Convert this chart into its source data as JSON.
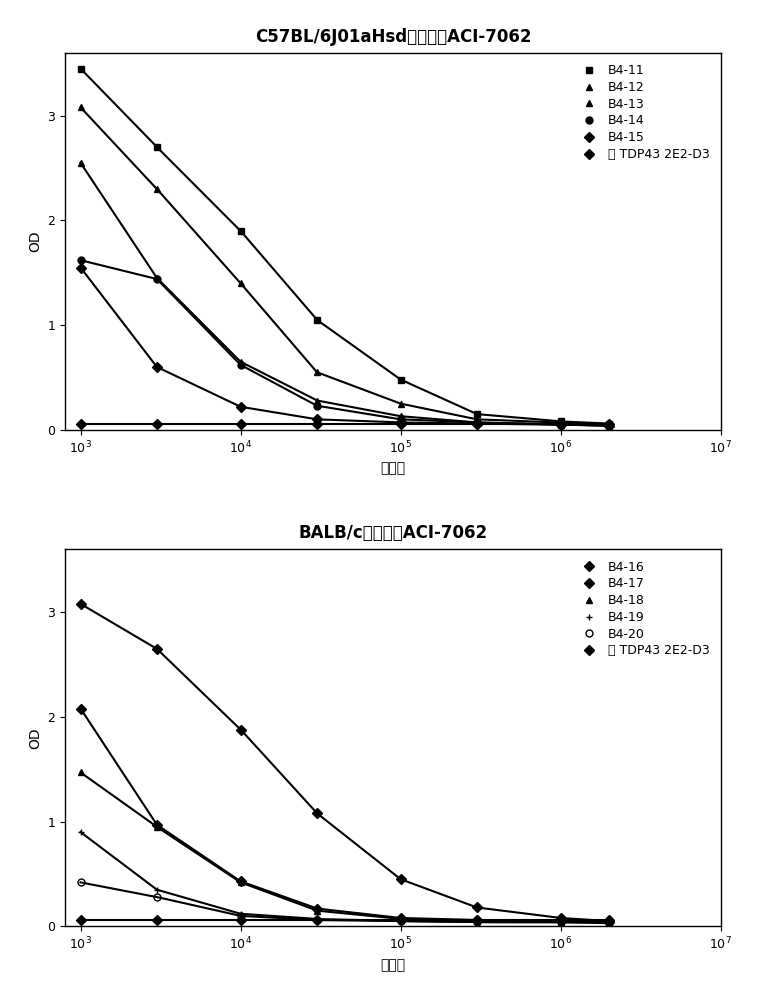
{
  "top_title": "C57BL/6J01aHsd小鼠中的ACI-7062",
  "bottom_title": "BALB/c小鼠中的ACI-7062",
  "xlabel": "稀释度",
  "ylabel": "OD",
  "top": {
    "series": [
      {
        "label": "B4-11",
        "marker": "s",
        "x": [
          1000,
          3000,
          10000,
          30000,
          100000,
          300000,
          1000000,
          2000000
        ],
        "y": [
          3.45,
          2.7,
          1.9,
          1.05,
          0.48,
          0.15,
          0.08,
          0.06
        ]
      },
      {
        "label": "B4-12",
        "marker": "^",
        "x": [
          1000,
          3000,
          10000,
          30000,
          100000,
          300000,
          1000000,
          2000000
        ],
        "y": [
          3.08,
          2.3,
          1.4,
          0.55,
          0.25,
          0.1,
          0.07,
          0.05
        ]
      },
      {
        "label": "B4-13",
        "marker": "^",
        "x": [
          1000,
          3000,
          10000,
          30000,
          100000,
          300000,
          1000000,
          2000000
        ],
        "y": [
          2.55,
          1.45,
          0.65,
          0.28,
          0.13,
          0.07,
          0.05,
          0.04
        ]
      },
      {
        "label": "B4-14",
        "marker": "o",
        "x": [
          1000,
          3000,
          10000,
          30000,
          100000,
          300000,
          1000000,
          2000000
        ],
        "y": [
          1.62,
          1.44,
          0.62,
          0.23,
          0.1,
          0.07,
          0.05,
          0.04
        ]
      },
      {
        "label": "B4-15",
        "marker": "D",
        "x": [
          1000,
          3000,
          10000,
          30000,
          100000,
          300000,
          1000000,
          2000000
        ],
        "y": [
          1.55,
          0.6,
          0.22,
          0.1,
          0.07,
          0.06,
          0.05,
          0.04
        ]
      },
      {
        "label": "抗 TDP43 2E2-D3",
        "marker": "D",
        "x": [
          1000,
          3000,
          10000,
          30000,
          100000,
          300000,
          1000000,
          2000000
        ],
        "y": [
          0.06,
          0.06,
          0.06,
          0.06,
          0.06,
          0.06,
          0.06,
          0.06
        ]
      }
    ]
  },
  "bottom": {
    "series": [
      {
        "label": "B4-16",
        "marker": "D",
        "x": [
          1000,
          3000,
          10000,
          30000,
          100000,
          300000,
          1000000,
          2000000
        ],
        "y": [
          3.08,
          2.65,
          1.88,
          1.08,
          0.45,
          0.18,
          0.08,
          0.05
        ]
      },
      {
        "label": "B4-17",
        "marker": "D",
        "x": [
          1000,
          3000,
          10000,
          30000,
          100000,
          300000,
          1000000,
          2000000
        ],
        "y": [
          2.08,
          0.97,
          0.43,
          0.17,
          0.08,
          0.06,
          0.05,
          0.04
        ]
      },
      {
        "label": "B4-18",
        "marker": "^",
        "x": [
          1000,
          3000,
          10000,
          30000,
          100000,
          300000,
          1000000,
          2000000
        ],
        "y": [
          1.47,
          0.95,
          0.42,
          0.15,
          0.07,
          0.05,
          0.04,
          0.04
        ]
      },
      {
        "label": "B4-19",
        "marker": "+",
        "x": [
          1000,
          3000,
          10000,
          30000,
          100000,
          300000,
          1000000,
          2000000
        ],
        "y": [
          0.9,
          0.35,
          0.12,
          0.07,
          0.05,
          0.04,
          0.04,
          0.04
        ]
      },
      {
        "label": "B4-20",
        "marker": "o",
        "fillstyle": "none",
        "x": [
          1000,
          3000,
          10000,
          30000,
          100000,
          300000,
          1000000,
          2000000
        ],
        "y": [
          0.42,
          0.28,
          0.1,
          0.06,
          0.05,
          0.04,
          0.04,
          0.03
        ]
      },
      {
        "label": "抗 TDP43 2E2-D3",
        "marker": "D",
        "x": [
          1000,
          3000,
          10000,
          30000,
          100000,
          300000,
          1000000,
          2000000
        ],
        "y": [
          0.06,
          0.06,
          0.06,
          0.06,
          0.06,
          0.06,
          0.06,
          0.06
        ]
      }
    ]
  },
  "xlim": [
    800,
    5000000
  ],
  "ylim": [
    0,
    3.6
  ],
  "color": "#000000",
  "legend_fontsize": 9,
  "title_fontsize": 12,
  "axis_fontsize": 10,
  "tick_fontsize": 9
}
